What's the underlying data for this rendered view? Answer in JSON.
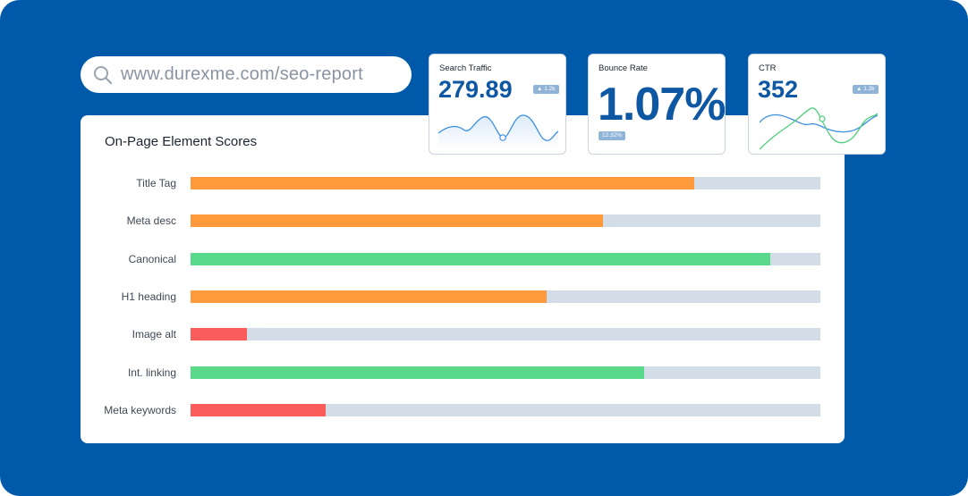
{
  "search": {
    "url": "www.durexme.com/seo-report"
  },
  "panel": {
    "title": "On-Page Element Scores",
    "rows": [
      {
        "label": "Title Tag",
        "score": 0.8,
        "color": "#ff9a3c"
      },
      {
        "label": "Meta desc",
        "score": 0.655,
        "color": "#ff9a3c"
      },
      {
        "label": "Canonical",
        "score": 0.92,
        "color": "#5ad98a"
      },
      {
        "label": "H1 heading",
        "score": 0.565,
        "color": "#ff9a3c"
      },
      {
        "label": "Image alt",
        "score": 0.09,
        "color": "#fa5c5c"
      },
      {
        "label": "Int. linking",
        "score": 0.72,
        "color": "#5ad98a"
      },
      {
        "label": "Meta keywords",
        "score": 0.215,
        "color": "#fa5c5c"
      }
    ]
  },
  "cards": {
    "traffic": {
      "title": "Search Traffic",
      "value": "279.89",
      "badge": "▲ 1.2k"
    },
    "bounce": {
      "title": "Bounce Rate",
      "value": "1.07%",
      "badge": "12.32%"
    },
    "ctr": {
      "title": "CTR",
      "value": "352",
      "badge": "▲ 1.2k"
    }
  },
  "colors": {
    "background": "#005aa9",
    "accent": "#0d57a3",
    "line_blue": "#3d8fe0",
    "line_green": "#4ccf7a"
  }
}
